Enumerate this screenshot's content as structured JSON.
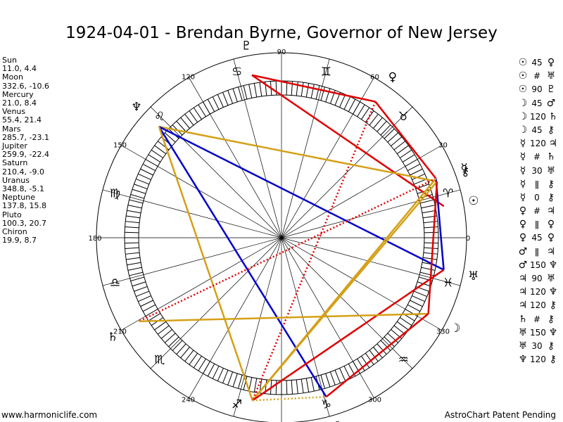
{
  "title": "1924-04-01 - Brendan Byrne, Governor of New Jersey",
  "planets": [
    {
      "name": "Sun",
      "coords": "11.0, 4.4",
      "lon": 11.0
    },
    {
      "name": "Moon",
      "coords": "332.6, -10.6",
      "lon": 332.6
    },
    {
      "name": "Mercury",
      "coords": "21.0, 8.4",
      "lon": 21.0
    },
    {
      "name": "Venus",
      "coords": "55.4, 21.4",
      "lon": 55.4
    },
    {
      "name": "Mars",
      "coords": "285.7, -23.1",
      "lon": 285.7
    },
    {
      "name": "Jupiter",
      "coords": "259.9, -22.4",
      "lon": 259.9
    },
    {
      "name": "Saturn",
      "coords": "210.4, -9.0",
      "lon": 210.4
    },
    {
      "name": "Uranus",
      "coords": "348.8, -5.1",
      "lon": 348.8
    },
    {
      "name": "Neptune",
      "coords": "137.8, 15.8",
      "lon": 137.8
    },
    {
      "name": "Pluto",
      "coords": "100.3, 20.7",
      "lon": 100.3
    },
    {
      "name": "Chiron",
      "coords": "19.9, 8.7",
      "lon": 19.9
    }
  ],
  "planet_glyphs": {
    "Sun": "☉",
    "Moon": "☽",
    "Mercury": "☿",
    "Venus": "♀",
    "Mars": "♂",
    "Jupiter": "♃",
    "Saturn": "♄",
    "Uranus": "♅",
    "Neptune": "♆",
    "Pluto": "♇",
    "Chiron": "⚷"
  },
  "zodiac_glyphs": [
    "♈",
    "♉",
    "♊",
    "♋",
    "♌",
    "♍",
    "♎",
    "♏",
    "♐",
    "♑",
    "♒",
    "♓"
  ],
  "degree_labels": [
    "0",
    "30",
    "60",
    "90",
    "120",
    "150",
    "180",
    "210",
    "240",
    "270",
    "300",
    "330"
  ],
  "bottom_degree_label": "337",
  "aspect_symbols": {
    "conj": "☌",
    "sextile": "⚹",
    "square": "□",
    "trine": "△",
    "semisquare": "∠",
    "quincunx": "⚻",
    "opp": "☍"
  },
  "aspects": [
    {
      "p1": "Sun",
      "type": "45",
      "p2": "Venus"
    },
    {
      "p1": "Sun",
      "type": "#",
      "p2": "Uranus"
    },
    {
      "p1": "Sun",
      "type": "90",
      "p2": "Pluto"
    },
    {
      "p1": "Moon",
      "type": "45",
      "p2": "Mars"
    },
    {
      "p1": "Moon",
      "type": "120",
      "p2": "Saturn"
    },
    {
      "p1": "Moon",
      "type": "45",
      "p2": "Chiron"
    },
    {
      "p1": "Mercury",
      "type": "120",
      "p2": "Jupiter"
    },
    {
      "p1": "Mercury",
      "type": "#",
      "p2": "Saturn"
    },
    {
      "p1": "Mercury",
      "type": "30",
      "p2": "Uranus"
    },
    {
      "p1": "Mercury",
      "type": "||",
      "p2": "Chiron"
    },
    {
      "p1": "Mercury",
      "type": "0",
      "p2": "Chiron"
    },
    {
      "p1": "Venus",
      "type": "#",
      "p2": "Jupiter"
    },
    {
      "p1": "Venus",
      "type": "||",
      "p2": "Venus"
    },
    {
      "p1": "Venus",
      "type": "45",
      "p2": "Venus"
    },
    {
      "p1": "Mars",
      "type": "||",
      "p2": "Jupiter"
    },
    {
      "p1": "Mars",
      "type": "150",
      "p2": "Neptune"
    },
    {
      "p1": "Jupiter",
      "type": "90",
      "p2": "Uranus"
    },
    {
      "p1": "Jupiter",
      "type": "120",
      "p2": "Neptune"
    },
    {
      "p1": "Jupiter",
      "type": "120",
      "p2": "Chiron"
    },
    {
      "p1": "Saturn",
      "type": "#",
      "p2": "Chiron"
    },
    {
      "p1": "Uranus",
      "type": "150",
      "p2": "Neptune"
    },
    {
      "p1": "Uranus",
      "type": "30",
      "p2": "Chiron"
    },
    {
      "p1": "Neptune",
      "type": "120",
      "p2": "Chiron"
    }
  ],
  "aspect_lines": [
    {
      "from": "Pluto",
      "to": "Venus",
      "color": "red",
      "style": "solid"
    },
    {
      "from": "Venus",
      "to": "Mercury",
      "color": "red",
      "style": "solid"
    },
    {
      "from": "Venus",
      "to": "Jupiter",
      "color": "red",
      "style": "dotted"
    },
    {
      "from": "Pluto",
      "to": "Sun",
      "color": "red",
      "style": "solid"
    },
    {
      "from": "Neptune",
      "to": "Chiron",
      "color": "gold",
      "style": "solid"
    },
    {
      "from": "Neptune",
      "to": "Uranus",
      "color": "blue",
      "style": "solid"
    },
    {
      "from": "Neptune",
      "to": "Mars",
      "color": "blue",
      "style": "solid"
    },
    {
      "from": "Neptune",
      "to": "Jupiter",
      "color": "gold",
      "style": "solid"
    },
    {
      "from": "Mercury",
      "to": "Uranus",
      "color": "blue",
      "style": "solid"
    },
    {
      "from": "Mercury",
      "to": "Saturn",
      "color": "red",
      "style": "dotted"
    },
    {
      "from": "Mercury",
      "to": "Jupiter",
      "color": "gold",
      "style": "solid"
    },
    {
      "from": "Chiron",
      "to": "Jupiter",
      "color": "gold",
      "style": "solid"
    },
    {
      "from": "Chiron",
      "to": "Moon",
      "color": "red",
      "style": "solid"
    },
    {
      "from": "Uranus",
      "to": "Jupiter",
      "color": "red",
      "style": "solid"
    },
    {
      "from": "Moon",
      "to": "Saturn",
      "color": "gold",
      "style": "solid"
    },
    {
      "from": "Moon",
      "to": "Mars",
      "color": "red",
      "style": "solid"
    },
    {
      "from": "Jupiter",
      "to": "Mars",
      "color": "gold",
      "style": "dotted"
    }
  ],
  "line_colors": {
    "red": "#e00000",
    "blue": "#0000cc",
    "gold": "#d4a017"
  },
  "footer_left": "www.harmoniclife.com",
  "footer_right": "AstroChart Patent Pending"
}
